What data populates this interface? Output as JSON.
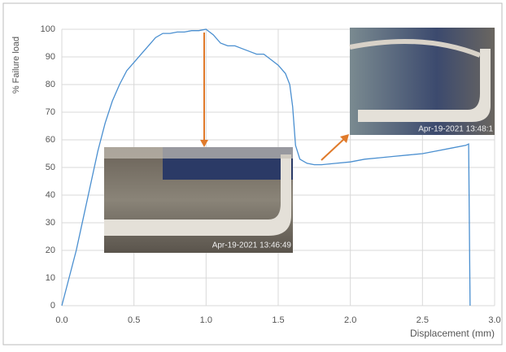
{
  "chart_data": {
    "type": "line",
    "x_label": "Displacement (mm)",
    "y_label": "% Failure load",
    "x": [
      0,
      0.05,
      0.1,
      0.15,
      0.2,
      0.25,
      0.3,
      0.35,
      0.4,
      0.45,
      0.5,
      0.55,
      0.6,
      0.65,
      0.7,
      0.75,
      0.8,
      0.85,
      0.9,
      0.95,
      1.0,
      1.05,
      1.1,
      1.15,
      1.2,
      1.25,
      1.3,
      1.35,
      1.4,
      1.45,
      1.5,
      1.55,
      1.58,
      1.6,
      1.62,
      1.65,
      1.7,
      1.75,
      1.8,
      1.9,
      2.0,
      2.1,
      2.2,
      2.3,
      2.4,
      2.5,
      2.6,
      2.7,
      2.8,
      2.82,
      2.83
    ],
    "series": [
      {
        "color": "#4a8fd0",
        "values": [
          0,
          10,
          20,
          32,
          44,
          56,
          66,
          74,
          80,
          85,
          88,
          91,
          94,
          97,
          98.5,
          98.5,
          99,
          99,
          99.5,
          99.5,
          100,
          98,
          95,
          94,
          94,
          93,
          92,
          91,
          91,
          89,
          87,
          84,
          80,
          72,
          58,
          53,
          51.5,
          51,
          51,
          51.5,
          52,
          53,
          53.5,
          54,
          54.5,
          55,
          56,
          57,
          58,
          58.5,
          0
        ]
      }
    ],
    "xlim": [
      0,
      3
    ],
    "ylim": [
      0,
      100
    ],
    "xticks": [
      {
        "value": 0,
        "label": "0.0"
      },
      {
        "value": 0.5,
        "label": "0.5"
      },
      {
        "value": 1,
        "label": "1.0"
      },
      {
        "value": 1.5,
        "label": "1.5"
      },
      {
        "value": 2,
        "label": "2.0"
      },
      {
        "value": 2.5,
        "label": "2.5"
      },
      {
        "value": 3,
        "label": "3.0"
      }
    ],
    "yticks": [
      0,
      10,
      20,
      30,
      40,
      50,
      60,
      70,
      80,
      90,
      100
    ],
    "grid": true,
    "annotations": [
      "Apr-19-2021 13:46:49",
      "Apr-19-2021 13:48:1"
    ]
  }
}
